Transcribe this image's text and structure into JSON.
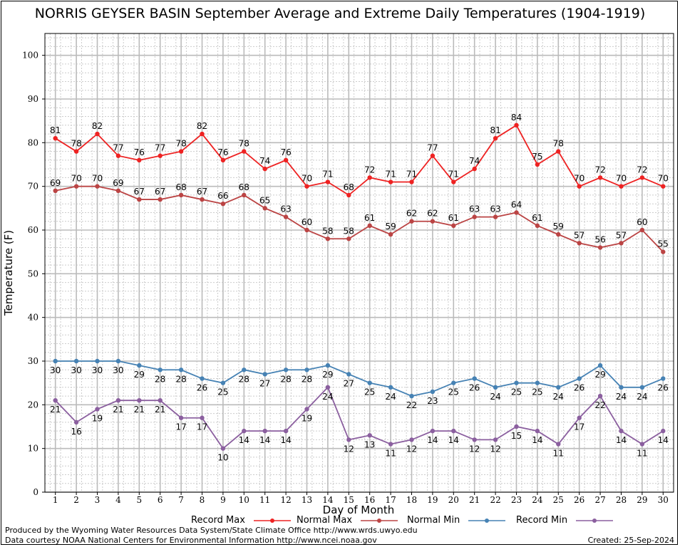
{
  "title": "NORRIS GEYSER BASIN September Average and Extreme Daily Temperatures (1904-1919)",
  "footer": {
    "produced_by": "Produced by the Wyoming Water Resources Data System/State Climate Office http://www.wrds.uwyo.edu",
    "data_courtesy": "Data courtesy NOAA National Centers for Environmental Information http://www.ncei.noaa.gov",
    "created": "Created:  25-Sep-2024"
  },
  "colors": {
    "record_max": "#ee2222",
    "normal_max": "#bb4444",
    "normal_min": "#4682b4",
    "record_min": "#8b5f9f",
    "grid_major": "#bbbbbb",
    "grid_minor": "#cccccc"
  },
  "chart_data": {
    "type": "line",
    "title": "NORRIS GEYSER BASIN September Average and Extreme Daily Temperatures (1904-1919)",
    "xlabel": "Day of Month",
    "ylabel": "Temperature (F)",
    "x": [
      1,
      2,
      3,
      4,
      5,
      6,
      7,
      8,
      9,
      10,
      11,
      12,
      13,
      14,
      15,
      16,
      17,
      18,
      19,
      20,
      21,
      22,
      23,
      24,
      25,
      26,
      27,
      28,
      29,
      30
    ],
    "xlim": [
      0.5,
      30.5
    ],
    "ylim": [
      0,
      105
    ],
    "yticks": [
      0,
      10,
      20,
      30,
      40,
      50,
      60,
      70,
      80,
      90,
      100
    ],
    "grid": true,
    "legend": "bottom",
    "series": [
      {
        "name": "Record Max",
        "color_key": "record_max",
        "label_pos": "above",
        "values": [
          81,
          78,
          82,
          77,
          76,
          77,
          78,
          82,
          76,
          78,
          74,
          76,
          70,
          71,
          68,
          72,
          71,
          71,
          77,
          71,
          74,
          81,
          84,
          75,
          78,
          70,
          72,
          70,
          72,
          70
        ]
      },
      {
        "name": "Normal Max",
        "color_key": "normal_max",
        "label_pos": "above",
        "values": [
          69,
          70,
          70,
          69,
          67,
          67,
          68,
          67,
          66,
          68,
          65,
          63,
          60,
          58,
          58,
          61,
          59,
          62,
          62,
          61,
          63,
          63,
          64,
          61,
          59,
          57,
          56,
          57,
          60,
          55
        ]
      },
      {
        "name": "Normal Min",
        "color_key": "normal_min",
        "label_pos": "below",
        "values": [
          30,
          30,
          30,
          30,
          29,
          28,
          28,
          26,
          25,
          28,
          27,
          28,
          28,
          29,
          27,
          25,
          24,
          22,
          23,
          25,
          26,
          24,
          25,
          25,
          24,
          26,
          29,
          24,
          24,
          26
        ]
      },
      {
        "name": "Record Min",
        "color_key": "record_min",
        "label_pos": "below",
        "values": [
          21,
          16,
          19,
          21,
          21,
          21,
          17,
          17,
          10,
          14,
          14,
          14,
          19,
          24,
          12,
          13,
          11,
          12,
          14,
          14,
          12,
          12,
          15,
          14,
          11,
          17,
          22,
          14,
          11,
          14
        ]
      }
    ]
  }
}
